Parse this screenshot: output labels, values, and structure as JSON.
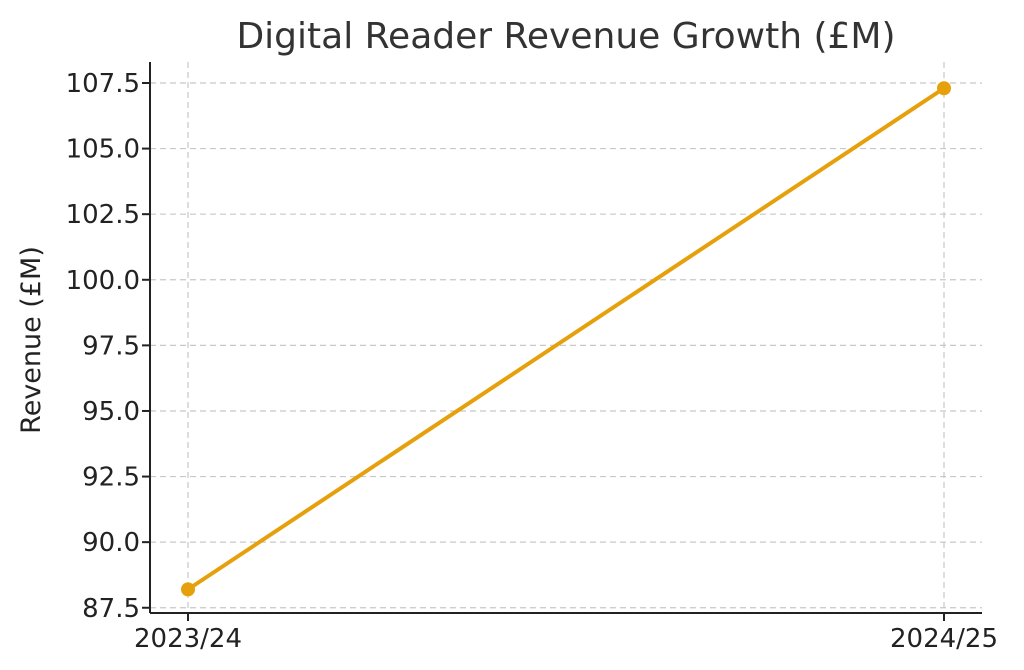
{
  "chart_data": {
    "type": "line",
    "title": "Digital Reader Revenue Growth (£M)",
    "xlabel": "",
    "ylabel": "Revenue (£M)",
    "categories": [
      "2023/24",
      "2024/25"
    ],
    "series": [
      {
        "values": [
          88.2,
          107.3
        ]
      }
    ],
    "ylim": [
      87.3,
      108.3
    ],
    "yticks": [
      87.5,
      90.0,
      92.5,
      95.0,
      97.5,
      100.0,
      102.5,
      105.0,
      107.5
    ],
    "ytick_labels": [
      "87.5",
      "90.0",
      "92.5",
      "95.0",
      "97.5",
      "100.0",
      "102.5",
      "105.0",
      "107.5"
    ],
    "grid": true,
    "line_color": "#E6A00C"
  }
}
